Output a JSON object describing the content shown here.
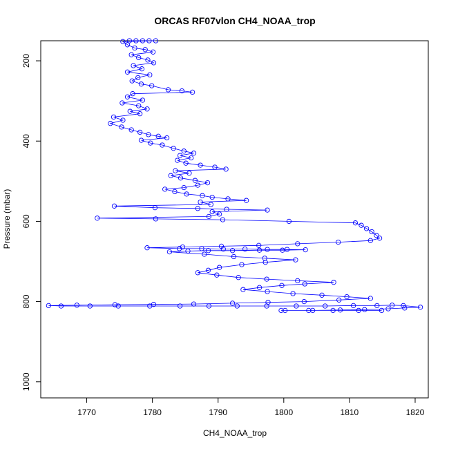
{
  "chart_data": {
    "type": "scatter",
    "title": "ORCAS RF07vlon CH4_NOAA_trop",
    "xlabel": "CH4_NOAA_trop",
    "ylabel": "Pressure (mbar)",
    "xlim": [
      1763,
      1822
    ],
    "ylim": [
      1040,
      150
    ],
    "y_reversed": true,
    "x_ticks": [
      1770,
      1780,
      1790,
      1800,
      1810,
      1820
    ],
    "y_ticks": [
      200,
      400,
      600,
      800,
      1000
    ],
    "grid": false,
    "legend": "none",
    "series_color": "#0000ff",
    "marker": "open-circle",
    "connected": true,
    "points": [
      [
        1777.5,
        150
      ],
      [
        1776.5,
        150
      ],
      [
        1778.5,
        150
      ],
      [
        1779.5,
        150
      ],
      [
        1780.5,
        150
      ],
      [
        1775.5,
        152
      ],
      [
        1776.2,
        160
      ],
      [
        1777.3,
        168
      ],
      [
        1778.9,
        172
      ],
      [
        1780.1,
        178
      ],
      [
        1776.8,
        185
      ],
      [
        1777.9,
        192
      ],
      [
        1779.3,
        198
      ],
      [
        1780.2,
        205
      ],
      [
        1777.1,
        212
      ],
      [
        1778.4,
        220
      ],
      [
        1776.2,
        228
      ],
      [
        1779.6,
        235
      ],
      [
        1777.8,
        242
      ],
      [
        1776.9,
        250
      ],
      [
        1778.3,
        258
      ],
      [
        1779.9,
        262
      ],
      [
        1782.4,
        272
      ],
      [
        1784.5,
        275
      ],
      [
        1786.1,
        278
      ],
      [
        1777.0,
        282
      ],
      [
        1776.2,
        290
      ],
      [
        1778.5,
        298
      ],
      [
        1775.4,
        305
      ],
      [
        1777.9,
        312
      ],
      [
        1779.2,
        320
      ],
      [
        1776.6,
        326
      ],
      [
        1778.1,
        332
      ],
      [
        1774.1,
        340
      ],
      [
        1775.5,
        348
      ],
      [
        1773.6,
        356
      ],
      [
        1775.3,
        365
      ],
      [
        1776.8,
        372
      ],
      [
        1778.1,
        378
      ],
      [
        1779.4,
        384
      ],
      [
        1780.9,
        388
      ],
      [
        1782.2,
        392
      ],
      [
        1778.3,
        398
      ],
      [
        1779.7,
        405
      ],
      [
        1781.5,
        410
      ],
      [
        1783.2,
        418
      ],
      [
        1784.8,
        425
      ],
      [
        1786.3,
        430
      ],
      [
        1784.2,
        436
      ],
      [
        1785.9,
        442
      ],
      [
        1783.8,
        448
      ],
      [
        1785.1,
        455
      ],
      [
        1787.3,
        460
      ],
      [
        1789.5,
        465
      ],
      [
        1791.2,
        470
      ],
      [
        1783.5,
        474
      ],
      [
        1785.6,
        480
      ],
      [
        1782.8,
        486
      ],
      [
        1784.3,
        492
      ],
      [
        1786.5,
        498
      ],
      [
        1788.4,
        504
      ],
      [
        1786.9,
        510
      ],
      [
        1784.8,
        516
      ],
      [
        1781.9,
        520
      ],
      [
        1783.4,
        526
      ],
      [
        1785.2,
        532
      ],
      [
        1787.6,
        536
      ],
      [
        1789.1,
        540
      ],
      [
        1791.5,
        544
      ],
      [
        1794.3,
        548
      ],
      [
        1787.3,
        552
      ],
      [
        1788.9,
        558
      ],
      [
        1774.2,
        562
      ],
      [
        1780.4,
        566
      ],
      [
        1786.9,
        568
      ],
      [
        1791.3,
        570
      ],
      [
        1797.5,
        572
      ],
      [
        1789.1,
        576
      ],
      [
        1790.2,
        582
      ],
      [
        1788.6,
        588
      ],
      [
        1771.6,
        592
      ],
      [
        1780.5,
        594
      ],
      [
        1790.7,
        596
      ],
      [
        1800.8,
        600
      ],
      [
        1810.9,
        604
      ],
      [
        1811.8,
        610
      ],
      [
        1812.6,
        618
      ],
      [
        1813.4,
        626
      ],
      [
        1814.1,
        635
      ],
      [
        1814.6,
        642
      ],
      [
        1813.2,
        648
      ],
      [
        1808.3,
        652
      ],
      [
        1802.1,
        656
      ],
      [
        1796.2,
        660
      ],
      [
        1790.5,
        662
      ],
      [
        1784.6,
        664
      ],
      [
        1779.2,
        666
      ],
      [
        1784.1,
        668
      ],
      [
        1787.5,
        668
      ],
      [
        1790.8,
        669
      ],
      [
        1794.1,
        669
      ],
      [
        1797.5,
        670
      ],
      [
        1800.5,
        670
      ],
      [
        1803.3,
        671
      ],
      [
        1799.8,
        672
      ],
      [
        1796.3,
        672
      ],
      [
        1792.2,
        673
      ],
      [
        1788.5,
        673
      ],
      [
        1785.4,
        674
      ],
      [
        1782.6,
        676
      ],
      [
        1787.9,
        682
      ],
      [
        1792.4,
        688
      ],
      [
        1797.1,
        692
      ],
      [
        1801.8,
        696
      ],
      [
        1797.2,
        702
      ],
      [
        1793.6,
        708
      ],
      [
        1790.2,
        715
      ],
      [
        1788.5,
        722
      ],
      [
        1786.9,
        728
      ],
      [
        1789.8,
        734
      ],
      [
        1793.1,
        740
      ],
      [
        1797.4,
        744
      ],
      [
        1802.1,
        748
      ],
      [
        1807.6,
        752
      ],
      [
        1803.2,
        756
      ],
      [
        1799.7,
        760
      ],
      [
        1796.3,
        765
      ],
      [
        1793.8,
        770
      ],
      [
        1797.5,
        775
      ],
      [
        1801.4,
        780
      ],
      [
        1805.8,
        784
      ],
      [
        1809.6,
        788
      ],
      [
        1813.2,
        792
      ],
      [
        1808.4,
        796
      ],
      [
        1803.1,
        800
      ],
      [
        1797.6,
        802
      ],
      [
        1792.2,
        804
      ],
      [
        1786.3,
        806
      ],
      [
        1780.2,
        807
      ],
      [
        1774.3,
        808
      ],
      [
        1768.5,
        809
      ],
      [
        1764.2,
        810
      ],
      [
        1766.1,
        811
      ],
      [
        1770.5,
        811
      ],
      [
        1774.8,
        811
      ],
      [
        1779.6,
        811
      ],
      [
        1784.2,
        811
      ],
      [
        1788.6,
        811
      ],
      [
        1792.9,
        811
      ],
      [
        1797.4,
        811
      ],
      [
        1801.9,
        811
      ],
      [
        1806.3,
        811
      ],
      [
        1810.6,
        810
      ],
      [
        1814.2,
        810
      ],
      [
        1816.5,
        809
      ],
      [
        1818.2,
        810
      ],
      [
        1820.8,
        814
      ],
      [
        1818.4,
        816
      ],
      [
        1815.9,
        818
      ],
      [
        1812.3,
        820
      ],
      [
        1808.6,
        821
      ],
      [
        1804.4,
        822
      ],
      [
        1800.2,
        822
      ],
      [
        1799.6,
        822
      ],
      [
        1803.8,
        822
      ],
      [
        1807.5,
        822
      ],
      [
        1811.4,
        822
      ],
      [
        1814.9,
        822
      ]
    ]
  }
}
